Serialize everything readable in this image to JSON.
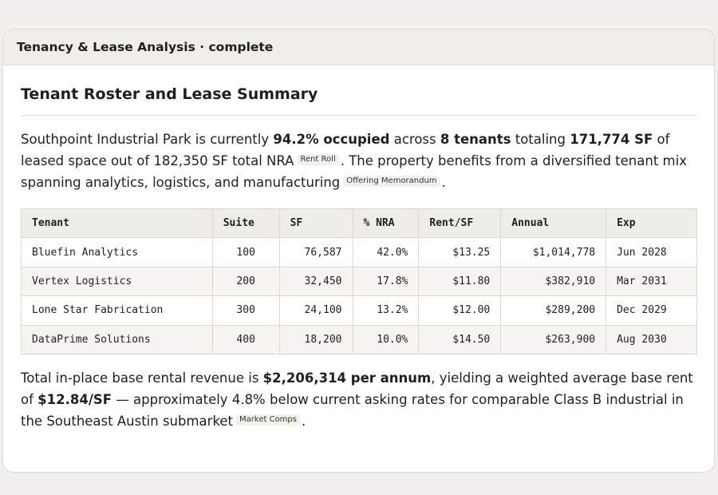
{
  "card": {
    "header": "Tenancy & Lease Analysis · complete",
    "title": "Tenant Roster and Lease Summary"
  },
  "intro": {
    "t1": "Southpoint Industrial Park is currently ",
    "b1": "94.2% occupied",
    "t2": " across ",
    "b2": "8 tenants",
    "t3": " totaling ",
    "b3": "171,774 SF",
    "t4": " of leased space out of 182,350 SF total NRA",
    "cite1": "Rent Roll",
    "t5": ". The property benefits from a diversified tenant mix spanning analytics, logistics, and manufacturing",
    "cite2": "Offering Memorandum",
    "t6": "."
  },
  "table": {
    "headers": [
      "Tenant",
      "Suite",
      "SF",
      "% NRA",
      "Rent/SF",
      "Annual",
      "Exp"
    ],
    "rows": [
      [
        "Bluefin Analytics",
        "100",
        "76,587",
        "42.0%",
        "$13.25",
        "$1,014,778",
        "Jun 2028"
      ],
      [
        "Vertex Logistics",
        "200",
        "32,450",
        "17.8%",
        "$11.80",
        "$382,910",
        "Mar 2031"
      ],
      [
        "Lone Star Fabrication",
        "300",
        "24,100",
        "13.2%",
        "$12.00",
        "$289,200",
        "Dec 2029"
      ],
      [
        "DataPrime Solutions",
        "400",
        "18,200",
        "10.0%",
        "$14.50",
        "$263,900",
        "Aug 2030"
      ]
    ]
  },
  "summary": {
    "t1": "Total in-place base rental revenue is ",
    "b1": "$2,206,314 per annum",
    "t2": ", yielding a weighted average base rent of ",
    "b2": "$12.84/SF",
    "t3": " — approximately 4.8% below current asking rates for comparable Class B industrial in the Southeast Austin submarket",
    "cite1": "Market Comps",
    "t4": "."
  }
}
